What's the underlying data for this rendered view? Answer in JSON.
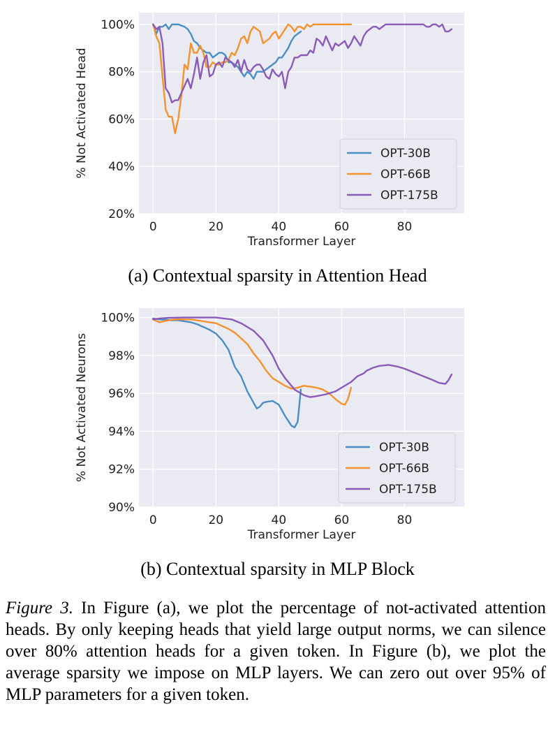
{
  "colors": {
    "background": "#eaeaf2",
    "grid": "#ffffff",
    "OPT-30B": "#4a8fc4",
    "OPT-66B": "#f5922c",
    "OPT-175B": "#8a5bb8"
  },
  "chart_data": [
    {
      "id": "a",
      "type": "line",
      "xlabel": "Transformer Layer",
      "ylabel": "% Not Activated Head",
      "xlim": [
        -4.5,
        99
      ],
      "ylim": [
        20,
        105
      ],
      "xticks": [
        "0",
        "20",
        "40",
        "60",
        "80"
      ],
      "xtick_values": [
        0,
        20,
        40,
        60,
        80
      ],
      "yticks": [
        "20%",
        "40%",
        "60%",
        "80%",
        "100%"
      ],
      "ytick_values": [
        20,
        40,
        60,
        80,
        100
      ],
      "grid": true,
      "legend_position": "lower-right",
      "series": [
        {
          "name": "OPT-30B",
          "x": [
            0,
            1,
            2,
            3,
            4,
            5,
            6,
            7,
            8,
            9,
            10,
            11,
            12,
            13,
            14,
            15,
            16,
            17,
            18,
            19,
            20,
            21,
            22,
            23,
            24,
            25,
            26,
            27,
            28,
            29,
            30,
            31,
            32,
            33,
            34,
            35,
            36,
            37,
            38,
            39,
            40,
            41,
            42,
            43,
            44,
            45,
            46,
            47
          ],
          "y": [
            100,
            96,
            99,
            99,
            100,
            98,
            100,
            100,
            100,
            99.5,
            99,
            98,
            96,
            93,
            92,
            90,
            89,
            88,
            88,
            86,
            87,
            88,
            88,
            87,
            84,
            84,
            83,
            82,
            80,
            78,
            80,
            79,
            77,
            80,
            80,
            80,
            81,
            82,
            83,
            84,
            86,
            86,
            88,
            90,
            93,
            95,
            96,
            97
          ]
        },
        {
          "name": "OPT-66B",
          "x": [
            0,
            1,
            2,
            3,
            4,
            5,
            6,
            7,
            8,
            9,
            10,
            11,
            12,
            13,
            14,
            15,
            16,
            17,
            18,
            19,
            20,
            21,
            22,
            23,
            24,
            25,
            26,
            27,
            28,
            29,
            30,
            31,
            32,
            33,
            34,
            35,
            36,
            37,
            38,
            39,
            40,
            41,
            42,
            43,
            44,
            45,
            46,
            47,
            48,
            49,
            50,
            51,
            52,
            53,
            54,
            55,
            56,
            57,
            58,
            59,
            60,
            61,
            62,
            63
          ],
          "y": [
            100,
            95,
            92,
            78,
            64,
            61,
            61,
            54,
            60,
            70,
            83,
            81,
            92,
            88,
            88,
            91,
            88,
            82,
            82,
            84,
            83,
            83,
            84,
            84,
            85,
            88,
            87,
            90,
            94,
            95,
            92,
            97,
            99,
            98,
            97,
            92,
            93,
            94,
            96,
            97,
            94,
            96,
            98,
            100,
            99,
            97,
            99,
            99,
            98,
            100,
            99,
            100,
            100,
            100,
            100,
            100,
            100,
            100,
            100,
            100,
            100,
            100,
            100,
            100
          ]
        },
        {
          "name": "OPT-175B",
          "x": [
            0,
            1,
            2,
            3,
            4,
            5,
            6,
            7,
            8,
            9,
            10,
            11,
            12,
            13,
            14,
            15,
            16,
            17,
            18,
            19,
            20,
            21,
            22,
            23,
            24,
            25,
            26,
            27,
            28,
            29,
            30,
            31,
            32,
            33,
            34,
            35,
            36,
            37,
            38,
            39,
            40,
            41,
            42,
            43,
            44,
            45,
            46,
            47,
            48,
            49,
            50,
            51,
            52,
            53,
            54,
            55,
            56,
            57,
            58,
            59,
            60,
            61,
            62,
            63,
            64,
            65,
            66,
            67,
            68,
            69,
            70,
            71,
            72,
            73,
            74,
            75,
            76,
            77,
            78,
            79,
            80,
            81,
            82,
            83,
            84,
            85,
            86,
            87,
            88,
            89,
            90,
            91,
            92,
            93,
            94,
            95
          ],
          "y": [
            100,
            98,
            99,
            92,
            73,
            71,
            67,
            68,
            68,
            71,
            74,
            77,
            73,
            79,
            86,
            77,
            84,
            87,
            78,
            79,
            83,
            84,
            82,
            86,
            85,
            84,
            82,
            85,
            80,
            85,
            81,
            80,
            82,
            83,
            83,
            81,
            78,
            77,
            81,
            79,
            78,
            80,
            73,
            80,
            82,
            86,
            86,
            87,
            87,
            87,
            89,
            88,
            94,
            93,
            91,
            95,
            92,
            89,
            92,
            91,
            92,
            93,
            90,
            92,
            95,
            93,
            91,
            95,
            97,
            98,
            99,
            99,
            98,
            99,
            100,
            100,
            100,
            100,
            100,
            100,
            100,
            100,
            100,
            100,
            100,
            100,
            100,
            99,
            99,
            100,
            100,
            99,
            100,
            97,
            97,
            98
          ]
        }
      ]
    },
    {
      "id": "b",
      "type": "line",
      "xlabel": "Transformer Layer",
      "ylabel": "% Not Activated Neurons",
      "xlim": [
        -4.5,
        99
      ],
      "ylim": [
        90,
        100.5
      ],
      "xticks": [
        "0",
        "20",
        "40",
        "60",
        "80"
      ],
      "xtick_values": [
        0,
        20,
        40,
        60,
        80
      ],
      "yticks": [
        "90%",
        "92%",
        "94%",
        "96%",
        "98%",
        "100%"
      ],
      "ytick_values": [
        90,
        92,
        94,
        96,
        98,
        100
      ],
      "grid": true,
      "legend_position": "lower-right",
      "series": [
        {
          "name": "OPT-30B",
          "x": [
            0,
            2,
            4,
            6,
            8,
            10,
            12,
            14,
            16,
            18,
            20,
            22,
            24,
            26,
            28,
            30,
            32,
            33,
            34,
            35,
            36,
            38,
            40,
            42,
            44,
            45,
            46,
            47
          ],
          "y": [
            99.95,
            99.9,
            99.88,
            99.85,
            99.85,
            99.8,
            99.75,
            99.65,
            99.5,
            99.35,
            99.15,
            98.8,
            98.3,
            97.4,
            96.9,
            96.1,
            95.5,
            95.2,
            95.3,
            95.5,
            95.55,
            95.6,
            95.4,
            94.8,
            94.3,
            94.2,
            94.5,
            96.2
          ]
        },
        {
          "name": "OPT-66B",
          "x": [
            0,
            2,
            4,
            6,
            8,
            10,
            12,
            14,
            16,
            18,
            20,
            22,
            24,
            26,
            28,
            30,
            32,
            34,
            36,
            38,
            40,
            42,
            44,
            46,
            48,
            50,
            52,
            54,
            56,
            58,
            60,
            61,
            62,
            63
          ],
          "y": [
            99.9,
            99.75,
            99.82,
            99.88,
            99.9,
            99.9,
            99.9,
            99.85,
            99.8,
            99.75,
            99.7,
            99.55,
            99.4,
            99.2,
            98.9,
            98.6,
            98.1,
            97.7,
            97.2,
            96.8,
            96.6,
            96.4,
            96.25,
            96.3,
            96.4,
            96.35,
            96.3,
            96.2,
            96.0,
            95.7,
            95.45,
            95.4,
            95.7,
            96.3
          ]
        },
        {
          "name": "OPT-175B",
          "x": [
            0,
            2,
            5,
            10,
            15,
            20,
            25,
            28,
            32,
            35,
            38,
            40,
            42,
            45,
            47,
            48,
            50,
            52,
            55,
            58,
            60,
            63,
            65,
            67,
            68,
            70,
            72,
            75,
            78,
            80,
            83,
            86,
            89,
            91,
            93,
            94,
            95
          ],
          "y": [
            99.9,
            99.95,
            99.98,
            100,
            100,
            100,
            99.9,
            99.7,
            99.3,
            98.8,
            98.0,
            97.3,
            96.8,
            96.2,
            96.0,
            95.9,
            95.8,
            95.85,
            95.95,
            96.1,
            96.3,
            96.6,
            96.9,
            97.05,
            97.2,
            97.35,
            97.45,
            97.5,
            97.4,
            97.3,
            97.1,
            96.9,
            96.7,
            96.55,
            96.5,
            96.7,
            97.0
          ]
        }
      ]
    }
  ],
  "captions": {
    "a": "(a)  Contextual sparsity in Attention Head",
    "b": "(b)  Contextual sparsity in MLP Block"
  },
  "figure_caption": {
    "label": "Figure 3.",
    "text": "In Figure (a), we plot the percentage of not-activated attention heads. By only keeping heads that yield large output norms, we can silence over 80% attention heads for a given token. In Figure (b), we plot the average sparsity we impose on MLP layers. We can zero out over 95% of MLP parameters for a given token."
  }
}
